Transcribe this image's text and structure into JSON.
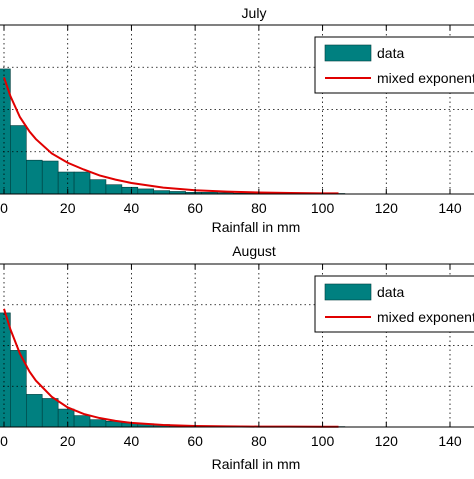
{
  "chart_data": [
    {
      "type": "bar",
      "title": "July",
      "xlabel": "Rainfall in mm",
      "ylabel": "",
      "xlim": [
        -2,
        150
      ],
      "ylim": [
        0,
        0.2
      ],
      "x_ticks": [
        0,
        20,
        40,
        60,
        80,
        100,
        120,
        140
      ],
      "x_tick_labels": [
        "0",
        "20",
        "40",
        "60",
        "80",
        "100",
        "120",
        "140"
      ],
      "grid": true,
      "legend": {
        "position": "top-right",
        "entries": [
          "data",
          "mixed exponential"
        ]
      },
      "series": [
        {
          "name": "data",
          "type": "bar",
          "color": "#008080",
          "bin_width": 5,
          "bin_left_edges": [
            -3,
            2,
            7,
            12,
            17,
            22,
            27,
            32,
            37,
            42,
            47,
            52,
            57,
            62,
            67,
            72,
            77,
            82,
            87,
            92,
            97,
            102
          ],
          "values": [
            0.148,
            0.081,
            0.04,
            0.039,
            0.026,
            0.026,
            0.017,
            0.011,
            0.008,
            0.006,
            0.004,
            0.003,
            0.002,
            0.002,
            0.0015,
            0.001,
            0.001,
            0.001,
            0.0008,
            0.0008,
            0.0006,
            0.0006
          ]
        },
        {
          "name": "mixed exponential",
          "type": "line",
          "color": "#e00000",
          "x": [
            0,
            2,
            5,
            8,
            10,
            15,
            20,
            25,
            30,
            35,
            40,
            50,
            60,
            70,
            80,
            90,
            100,
            105
          ],
          "values": [
            0.138,
            0.116,
            0.091,
            0.074,
            0.065,
            0.048,
            0.037,
            0.029,
            0.022,
            0.017,
            0.013,
            0.0075,
            0.0045,
            0.0028,
            0.0018,
            0.0012,
            0.0008,
            0.0007
          ]
        }
      ]
    },
    {
      "type": "bar",
      "title": "August",
      "xlabel": "Rainfall in mm",
      "ylabel": "",
      "xlim": [
        -2,
        150
      ],
      "ylim": [
        0,
        0.2
      ],
      "x_ticks": [
        0,
        20,
        40,
        60,
        80,
        100,
        120,
        140
      ],
      "x_tick_labels": [
        "0",
        "20",
        "40",
        "60",
        "80",
        "100",
        "120",
        "140"
      ],
      "grid": true,
      "legend": {
        "position": "top-right",
        "entries": [
          "data",
          "mixed exponential"
        ]
      },
      "series": [
        {
          "name": "data",
          "type": "bar",
          "color": "#008080",
          "bin_width": 5,
          "bin_left_edges": [
            -3,
            2,
            7,
            12,
            17,
            22,
            27,
            32,
            37,
            42,
            47,
            52,
            57,
            62,
            67,
            72,
            77,
            82,
            87,
            92,
            97,
            102
          ],
          "values": [
            0.14,
            0.094,
            0.04,
            0.035,
            0.022,
            0.014,
            0.009,
            0.007,
            0.005,
            0.004,
            0.003,
            0.002,
            0.0015,
            0.001,
            0.001,
            0.001,
            0.0008,
            0.0008,
            0.0006,
            0.0006,
            0.0005,
            0.0005
          ]
        },
        {
          "name": "mixed exponential",
          "type": "line",
          "color": "#e00000",
          "x": [
            0,
            2,
            5,
            8,
            10,
            15,
            20,
            25,
            30,
            35,
            40,
            50,
            60,
            70,
            80,
            90,
            100,
            105
          ],
          "values": [
            0.145,
            0.12,
            0.09,
            0.068,
            0.057,
            0.037,
            0.024,
            0.016,
            0.011,
            0.0075,
            0.005,
            0.0025,
            0.0013,
            0.0008,
            0.0005,
            0.0004,
            0.0003,
            0.0003
          ]
        }
      ]
    }
  ]
}
